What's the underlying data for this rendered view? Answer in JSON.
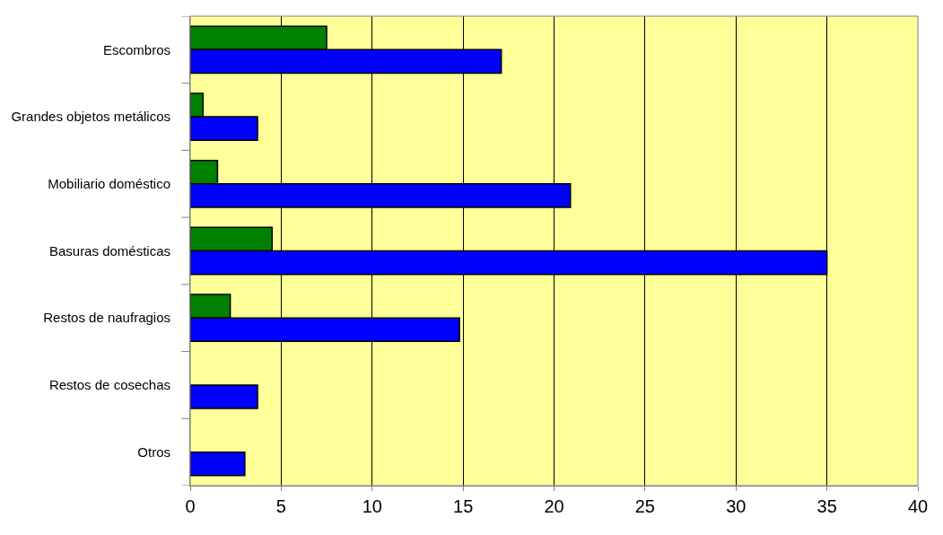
{
  "chart_data": {
    "type": "bar",
    "orientation": "horizontal",
    "categories": [
      "Escombros",
      "Grandes objetos metálicos",
      "Mobiliario doméstico",
      "Basuras domésticas",
      "Restos de naufragios",
      "Restos de cosechas",
      "Otros"
    ],
    "series": [
      {
        "color": "#008000",
        "values": [
          7.5,
          0.7,
          1.5,
          4.5,
          2.2,
          null,
          null
        ]
      },
      {
        "color": "#0000ff",
        "values": [
          17.1,
          3.7,
          20.9,
          35.0,
          14.8,
          3.7,
          3.0
        ]
      }
    ],
    "xlim": [
      0,
      40
    ],
    "xticks": [
      0,
      5,
      10,
      15,
      20,
      25,
      30,
      35,
      40
    ],
    "grid": "x"
  }
}
